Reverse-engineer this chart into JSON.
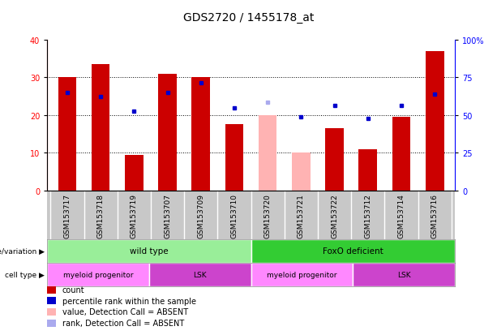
{
  "title": "GDS2720 / 1455178_at",
  "samples": [
    "GSM153717",
    "GSM153718",
    "GSM153719",
    "GSM153707",
    "GSM153709",
    "GSM153710",
    "GSM153720",
    "GSM153721",
    "GSM153722",
    "GSM153712",
    "GSM153714",
    "GSM153716"
  ],
  "bar_heights": [
    30.0,
    33.5,
    9.5,
    31.0,
    30.0,
    17.5,
    20.0,
    10.0,
    16.5,
    11.0,
    19.5,
    37.0
  ],
  "bar_colors": [
    "#cc0000",
    "#cc0000",
    "#cc0000",
    "#cc0000",
    "#cc0000",
    "#cc0000",
    "#ffb3b3",
    "#ffb3b3",
    "#cc0000",
    "#cc0000",
    "#cc0000",
    "#cc0000"
  ],
  "percentile_vals": [
    26.0,
    25.0,
    21.0,
    26.0,
    28.5,
    22.0,
    23.5,
    19.5,
    22.5,
    19.0,
    22.5,
    25.5
  ],
  "dot_colors": [
    "#0000cc",
    "#0000cc",
    "#0000cc",
    "#0000cc",
    "#0000cc",
    "#0000cc",
    "#aaaaee",
    "#0000cc",
    "#0000cc",
    "#0000cc",
    "#0000cc",
    "#0000cc"
  ],
  "ylim_left": [
    0,
    40
  ],
  "yticks_left": [
    0,
    10,
    20,
    30,
    40
  ],
  "ytick_labels_right": [
    "0",
    "25",
    "50",
    "75",
    "100%"
  ],
  "yticks_right_vals": [
    0,
    10,
    20,
    30,
    40
  ],
  "genotype_groups": [
    {
      "label": "wild type",
      "start": 0,
      "end": 6,
      "color": "#99ee99"
    },
    {
      "label": "FoxO deficient",
      "start": 6,
      "end": 12,
      "color": "#33cc33"
    }
  ],
  "cell_type_groups": [
    {
      "label": "myeloid progenitor",
      "start": 0,
      "end": 3,
      "color": "#ff88ff"
    },
    {
      "label": "LSK",
      "start": 3,
      "end": 6,
      "color": "#cc44cc"
    },
    {
      "label": "myeloid progenitor",
      "start": 6,
      "end": 9,
      "color": "#ff88ff"
    },
    {
      "label": "LSK",
      "start": 9,
      "end": 12,
      "color": "#cc44cc"
    }
  ],
  "legend_items": [
    {
      "label": "count",
      "color": "#cc0000"
    },
    {
      "label": "percentile rank within the sample",
      "color": "#0000cc"
    },
    {
      "label": "value, Detection Call = ABSENT",
      "color": "#ffb3b3"
    },
    {
      "label": "rank, Detection Call = ABSENT",
      "color": "#aaaaee"
    }
  ],
  "title_fontsize": 10,
  "tick_fontsize": 7,
  "annot_fontsize": 7.5,
  "legend_fontsize": 7
}
